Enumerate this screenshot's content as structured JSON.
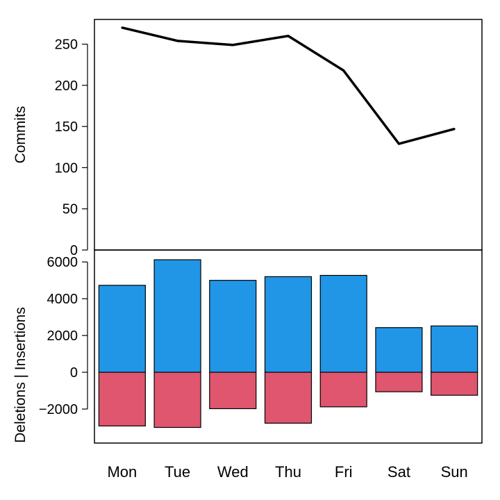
{
  "chart_data": [
    {
      "type": "line",
      "categories": [
        "Mon",
        "Tue",
        "Wed",
        "Thu",
        "Fri",
        "Sat",
        "Sun"
      ],
      "series": [
        {
          "values": [
            270,
            254,
            249,
            260,
            218,
            129,
            147
          ]
        }
      ],
      "ylabel": "Commits",
      "ylim": [
        0,
        280
      ],
      "yticks": [
        0,
        50,
        100,
        150,
        200,
        250
      ],
      "grid": false,
      "colors": {
        "line": "#000000"
      }
    },
    {
      "type": "bar",
      "categories": [
        "Mon",
        "Tue",
        "Wed",
        "Thu",
        "Fri",
        "Sat",
        "Sun"
      ],
      "series": [
        {
          "values": [
            4730,
            6120,
            5000,
            5200,
            5270,
            2430,
            2520
          ]
        },
        {
          "values": [
            -2920,
            -3000,
            -1980,
            -2770,
            -1880,
            -1060,
            -1250
          ]
        }
      ],
      "ylabel": "Deletions | Insertions",
      "ylim": [
        -3850,
        6650
      ],
      "yticks": [
        -2000,
        0,
        2000,
        4000,
        6000
      ],
      "grid": false,
      "colors": {
        "insertions": "#2196e6",
        "deletions": "#e0566e"
      }
    }
  ]
}
